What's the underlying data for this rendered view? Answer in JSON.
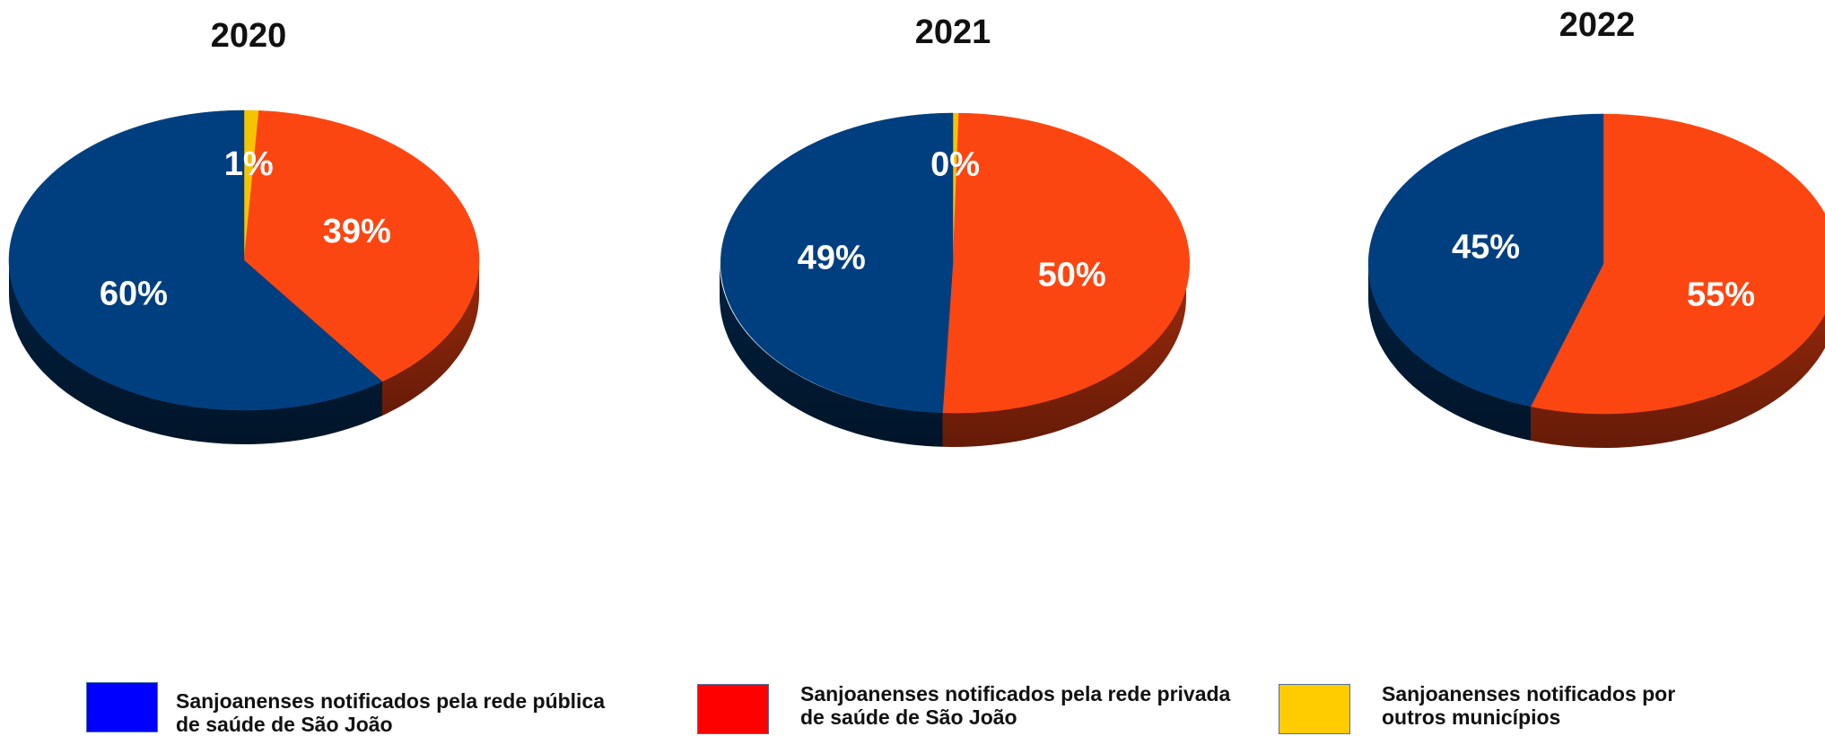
{
  "chart_data": [
    {
      "type": "pie",
      "title": "2020",
      "categories": [
        "Sanjoanenses notificados pela rede pública de saúde de São João",
        "Sanjoanenses notificados pela rede privada de saúde de São João",
        "Sanjoanenses notificados por outros municípios"
      ],
      "values": [
        60,
        39,
        1
      ],
      "labels": [
        "60%",
        "39%",
        "1%"
      ]
    },
    {
      "type": "pie",
      "title": "2021",
      "categories": [
        "Sanjoanenses notificados pela rede pública de saúde de São João",
        "Sanjoanenses notificados pela rede privada de saúde de São João",
        "Sanjoanenses notificados por outros municípios"
      ],
      "values": [
        49,
        50,
        0.4
      ],
      "labels": [
        "49%",
        "50%",
        "0%"
      ]
    },
    {
      "type": "pie",
      "title": "2022",
      "categories": [
        "Sanjoanenses notificados pela rede pública de saúde de São João",
        "Sanjoanenses notificados pela rede privada de saúde de São João",
        "Sanjoanenses notificados por outros municípios"
      ],
      "values": [
        45,
        55,
        0
      ],
      "labels": [
        "45%",
        "55%",
        null
      ]
    }
  ],
  "legend": {
    "placement": "bottom",
    "items": [
      {
        "label": "Sanjoanenses notificados pela rede pública\nde saúde de São João",
        "swatch_color": "#0000ff"
      },
      {
        "label": "Sanjoanenses notificados pela rede privada\nde saúde de São João",
        "swatch_color": "#ff0000"
      },
      {
        "label": "Sanjoanenses notificados por\noutros municípios",
        "swatch_color": "#ffcc00"
      }
    ]
  },
  "colors": {
    "slices": [
      "#003f7f",
      "#fc4612",
      "#f5c400"
    ],
    "slices_side": [
      "#01203f",
      "#9c2a0c",
      "#b89300"
    ]
  }
}
